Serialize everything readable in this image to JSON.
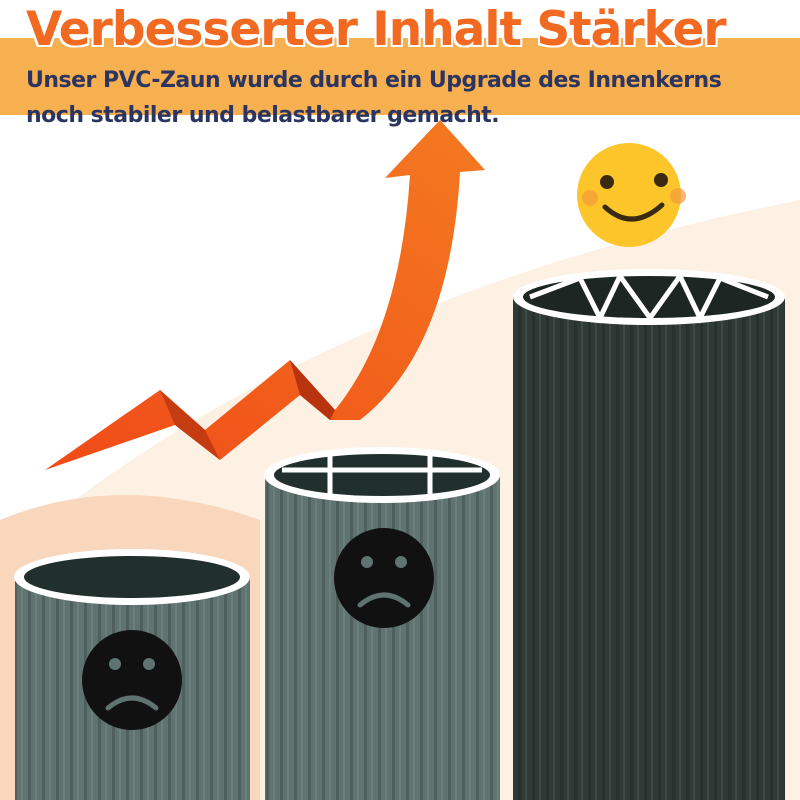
{
  "header": {
    "title": "Verbesserter Inhalt Stärker",
    "subtitle_line1": "Unser PVC-Zaun wurde durch ein Upgrade des Innenkerns",
    "subtitle_line2": "noch stabiler und belastbarer gemacht."
  },
  "colors": {
    "title": "#f26a21",
    "band": "#f7b04f",
    "subtitle": "#2c3460",
    "arrow": "#f0561b",
    "pipe_small": "#5f7470",
    "pipe_large": "#2f3a37",
    "happy_face": "#fcc62a",
    "sad_face": "#111111"
  },
  "icons": [
    "trend-up-arrow",
    "happy-face-icon",
    "sad-face-icon",
    "sad-face-icon"
  ]
}
